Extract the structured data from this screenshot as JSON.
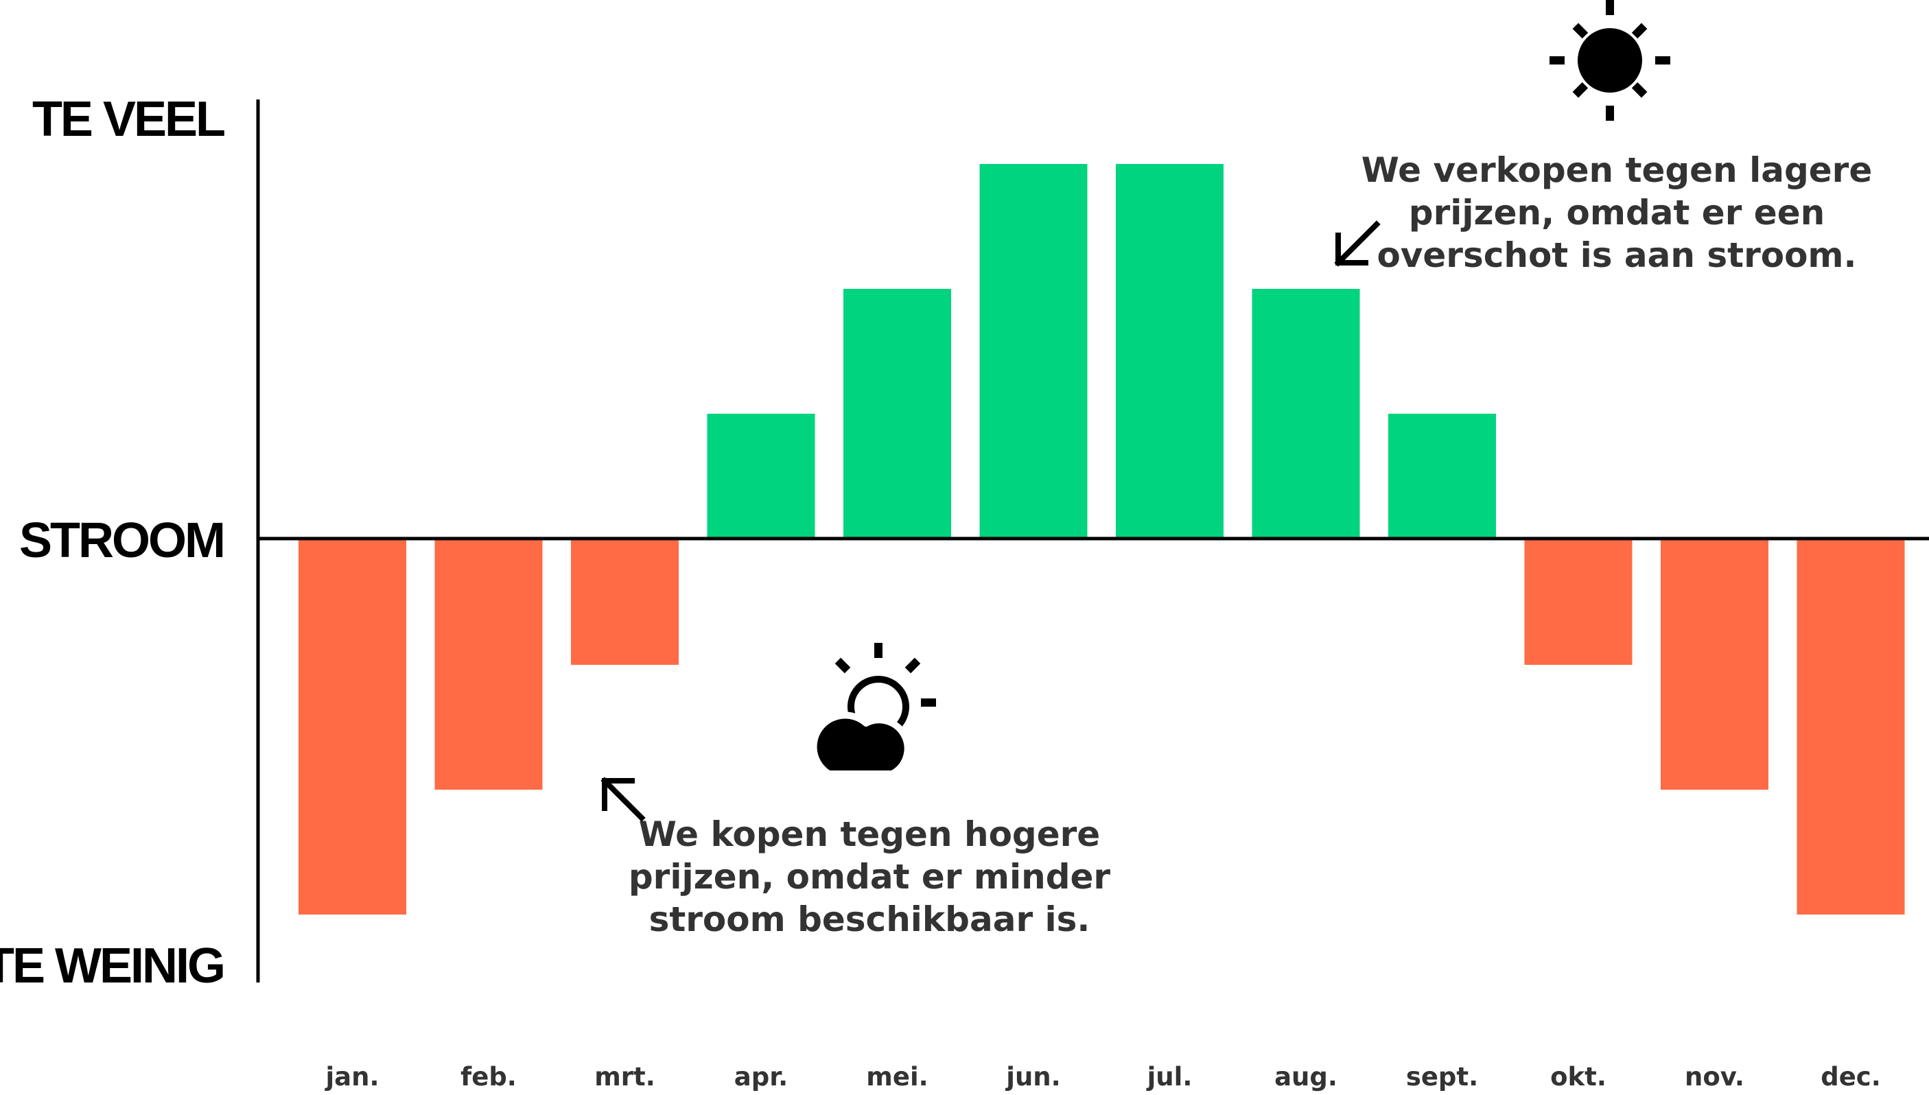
{
  "chart_data": {
    "type": "bar",
    "categories": [
      "jan.",
      "feb.",
      "mrt.",
      "apr.",
      "mei.",
      "jun.",
      "jul.",
      "aug.",
      "sept.",
      "okt.",
      "nov.",
      "dec."
    ],
    "values": [
      -3,
      -2,
      -1,
      1,
      2,
      3,
      3,
      2,
      1,
      -1,
      -2,
      -3
    ],
    "ylim": [
      -3.5,
      3.5
    ],
    "y_labels": {
      "top": "TE VEEL",
      "middle": "STROOM",
      "bottom": "TE WEINIG"
    },
    "colors": {
      "positive": "#00d47e",
      "negative": "#ff6b45"
    },
    "annotations": [
      {
        "name": "surplus-annotation",
        "lines": [
          "We verkopen tegen lagere",
          "prijzen, omdat er een",
          "overschot is aan stroom."
        ]
      },
      {
        "name": "shortage-annotation",
        "lines": [
          "We kopen tegen hogere",
          "prijzen, omdat er minder",
          "stroom beschikbaar is."
        ]
      }
    ],
    "icons": [
      "sun-icon",
      "cloud-sun-icon",
      "arrow-down-left-icon",
      "arrow-up-left-icon"
    ]
  }
}
